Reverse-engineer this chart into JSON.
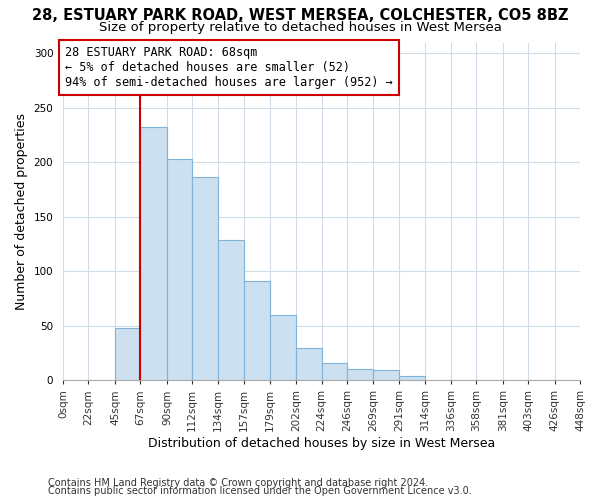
{
  "title": "28, ESTUARY PARK ROAD, WEST MERSEA, COLCHESTER, CO5 8BZ",
  "subtitle": "Size of property relative to detached houses in West Mersea",
  "xlabel": "Distribution of detached houses by size in West Mersea",
  "ylabel": "Number of detached properties",
  "bar_color": "#cce0f0",
  "bar_edge_color": "#7fb3d9",
  "bin_edges": [
    0,
    22,
    45,
    67,
    90,
    112,
    134,
    157,
    179,
    202,
    224,
    246,
    269,
    291,
    314,
    336,
    358,
    381,
    403,
    426,
    448
  ],
  "counts": [
    0,
    0,
    48,
    232,
    203,
    187,
    129,
    91,
    60,
    30,
    16,
    10,
    9,
    4,
    0,
    0,
    0,
    0,
    0,
    0
  ],
  "tick_labels": [
    "0sqm",
    "22sqm",
    "45sqm",
    "67sqm",
    "90sqm",
    "112sqm",
    "134sqm",
    "157sqm",
    "179sqm",
    "202sqm",
    "224sqm",
    "246sqm",
    "269sqm",
    "291sqm",
    "314sqm",
    "336sqm",
    "358sqm",
    "381sqm",
    "403sqm",
    "426sqm",
    "448sqm"
  ],
  "annotation_title": "28 ESTUARY PARK ROAD: 68sqm",
  "annotation_line1": "← 5% of detached houses are smaller (52)",
  "annotation_line2": "94% of semi-detached houses are larger (952) →",
  "vline_x": 67,
  "vline_color": "#cc0000",
  "annotation_box_edge_color": "#cc0000",
  "ylim": [
    0,
    310
  ],
  "yticks": [
    0,
    50,
    100,
    150,
    200,
    250,
    300
  ],
  "footer1": "Contains HM Land Registry data © Crown copyright and database right 2024.",
  "footer2": "Contains public sector information licensed under the Open Government Licence v3.0.",
  "background_color": "#ffffff",
  "plot_background": "#ffffff",
  "grid_color": "#d0dce8",
  "title_fontsize": 10.5,
  "subtitle_fontsize": 9.5,
  "axis_label_fontsize": 9,
  "tick_fontsize": 7.5,
  "footer_fontsize": 7,
  "annotation_fontsize": 8.5
}
